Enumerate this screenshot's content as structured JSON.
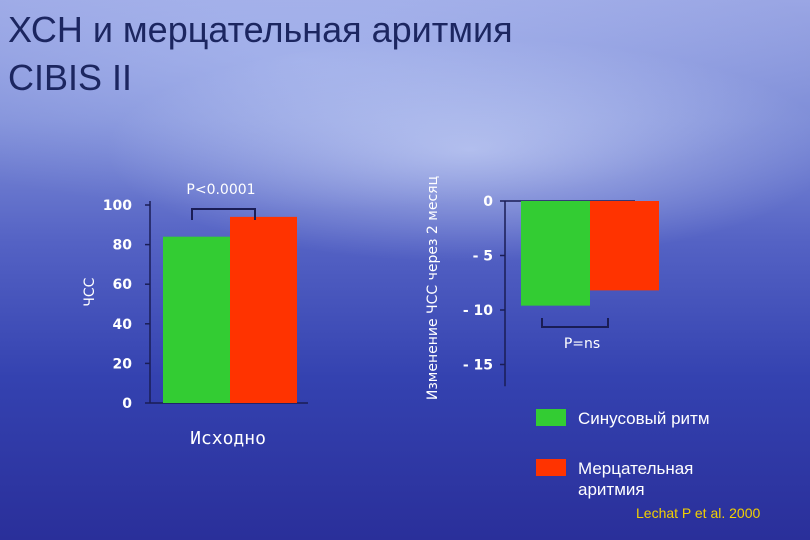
{
  "title_line1": "ХСН и мерцательная аритмия",
  "title_line2": "CIBIS II",
  "source": "Lechat P et al. 2000",
  "legend": [
    {
      "label": "Синусовый ритм",
      "color": "#33cc33"
    },
    {
      "label": "Мерцательная аритмия",
      "color": "#ff3300"
    }
  ],
  "chart_data": [
    {
      "type": "bar",
      "ylabel": "ЧСС",
      "xlabel": "Исходно",
      "ylim": [
        0,
        100
      ],
      "yticks": [
        0,
        20,
        40,
        60,
        80,
        100
      ],
      "ytick_labels": [
        "0",
        "20",
        "40",
        "60",
        "80",
        "100"
      ],
      "series": [
        {
          "name": "Синусовый ритм",
          "color": "#33cc33",
          "values": [
            84
          ]
        },
        {
          "name": "Мерцательная аритмия",
          "color": "#ff3300",
          "values": [
            94
          ]
        }
      ],
      "annotation": "P<0.0001"
    },
    {
      "type": "bar",
      "ylabel": "Изменение ЧСС через 2 месяц",
      "ylim": [
        -17,
        0
      ],
      "yticks": [
        0,
        -5,
        -10,
        -15
      ],
      "ytick_labels": [
        "0",
        "- 5",
        "- 10",
        "- 15"
      ],
      "series": [
        {
          "name": "Синусовый ритм",
          "color": "#33cc33",
          "values": [
            -9.6
          ]
        },
        {
          "name": "Мерцательная аритмия",
          "color": "#ff3300",
          "values": [
            -8.2
          ]
        }
      ],
      "annotation": "P=ns"
    }
  ]
}
